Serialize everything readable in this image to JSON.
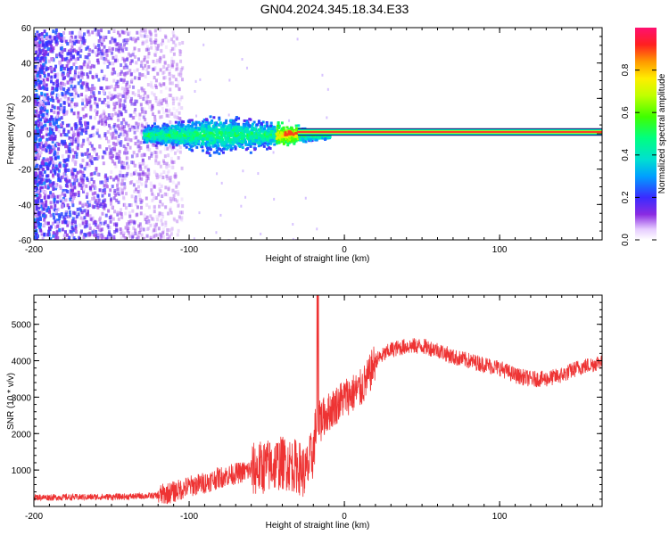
{
  "title": "GN04.2024.345.18.34.E33",
  "chart_data": [
    {
      "type": "heatmap",
      "xlabel": "Height of straight line (km)",
      "ylabel": "Frequency (Hz)",
      "xlim": [
        -200,
        166
      ],
      "ylim": [
        -60,
        60
      ],
      "xticks": [
        -200,
        -100,
        0,
        100
      ],
      "yticks": [
        -60,
        -40,
        -20,
        0,
        20,
        40,
        60
      ],
      "colorbar": {
        "label": "Normalized spectral amplitude",
        "range": [
          0,
          1
        ],
        "ticks": [
          "0.0",
          "0.2",
          "0.4",
          "0.6",
          "0.8"
        ]
      },
      "features": {
        "noise_band_x": [
          -200,
          -105
        ],
        "signal_line_freq_hz": 1,
        "signal_line_from_x": -30,
        "spread_region_x": [
          -130,
          -30
        ],
        "peak_x": -35
      }
    },
    {
      "type": "line",
      "xlabel": "Height of straight line (km)",
      "ylabel": "SNR (10 * v/v)",
      "xlim": [
        -200,
        166
      ],
      "ylim": [
        0,
        5800
      ],
      "xticks": [
        -200,
        -100,
        0,
        100
      ],
      "yticks": [
        1000,
        2000,
        3000,
        4000,
        5000
      ],
      "color": "#ee3333",
      "series": [
        {
          "x": [
            -200,
            -180,
            -160,
            -140,
            -120,
            -110,
            -100,
            -90,
            -80,
            -70,
            -60,
            -50,
            -40,
            -30,
            -25,
            -20,
            -17,
            -15,
            -10,
            -5,
            0,
            5,
            10,
            15,
            20,
            30,
            40,
            50,
            60,
            70,
            80,
            90,
            100,
            110,
            120,
            130,
            140,
            150,
            160,
            166
          ],
          "y": [
            250,
            250,
            260,
            270,
            300,
            400,
            550,
            650,
            800,
            900,
            1000,
            1100,
            1200,
            1100,
            900,
            1500,
            2700,
            2400,
            2600,
            2800,
            3000,
            3100,
            3200,
            3500,
            4000,
            4300,
            4400,
            4400,
            4300,
            4100,
            4000,
            3900,
            3800,
            3600,
            3500,
            3500,
            3600,
            3800,
            3900,
            4000
          ]
        }
      ]
    }
  ]
}
